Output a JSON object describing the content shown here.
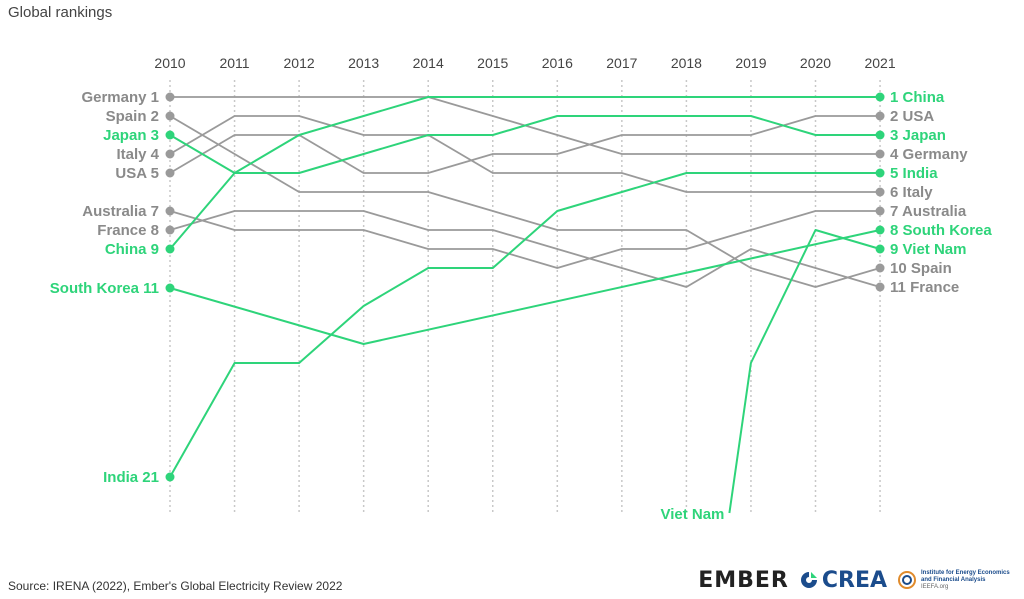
{
  "title": "Global rankings",
  "source": "Source: IRENA (2022), Ember's Global Electricity Review 2022",
  "logos": {
    "ember": "EMBER",
    "crea": "CREA",
    "ieefa_line1": "Institute for Energy Economics",
    "ieefa_line2": "and Financial Analysis",
    "ieefa_url": "IEEFA.org"
  },
  "colors": {
    "highlight": "#2ed47a",
    "muted": "#9a9a9a",
    "grid": "#c8c8c8",
    "label_muted": "#8a8a8a"
  },
  "chart_data": {
    "type": "line",
    "x": [
      2010,
      2011,
      2012,
      2013,
      2014,
      2015,
      2016,
      2017,
      2018,
      2019,
      2020,
      2021
    ],
    "ylim": [
      1,
      21
    ],
    "grid": true,
    "series": [
      {
        "name": "China",
        "highlight": true,
        "values": [
          9,
          5,
          3,
          2,
          1,
          1,
          1,
          1,
          1,
          1,
          1,
          1
        ],
        "start_label": "China 9",
        "end_label": "1 China"
      },
      {
        "name": "USA",
        "highlight": false,
        "values": [
          5,
          3,
          3,
          5,
          5,
          4,
          4,
          3,
          3,
          3,
          2,
          2
        ],
        "start_label": "USA 5",
        "end_label": "2 USA"
      },
      {
        "name": "Japan",
        "highlight": true,
        "values": [
          3,
          5,
          5,
          4,
          3,
          3,
          2,
          2,
          2,
          2,
          3,
          3
        ],
        "start_label": "Japan 3",
        "end_label": "3 Japan"
      },
      {
        "name": "Germany",
        "highlight": false,
        "values": [
          1,
          1,
          1,
          1,
          1,
          2,
          3,
          4,
          4,
          4,
          4,
          4
        ],
        "start_label": "Germany 1",
        "end_label": "4 Germany"
      },
      {
        "name": "India",
        "highlight": true,
        "values": [
          21,
          15,
          15,
          12,
          10,
          10,
          7,
          6,
          5,
          5,
          5,
          5
        ],
        "start_label": "India 21",
        "end_label": "5 India"
      },
      {
        "name": "Italy",
        "highlight": false,
        "values": [
          4,
          2,
          2,
          3,
          3,
          5,
          5,
          5,
          6,
          6,
          6,
          6
        ],
        "start_label": "Italy 4",
        "end_label": "6 Italy"
      },
      {
        "name": "Australia",
        "highlight": false,
        "values": [
          7,
          8,
          8,
          8,
          9,
          9,
          10,
          9,
          9,
          8,
          7,
          7
        ],
        "start_label": "Australia 7",
        "end_label": "7 Australia"
      },
      {
        "name": "South Korea",
        "highlight": true,
        "values": [
          11,
          null,
          null,
          14,
          null,
          null,
          null,
          null,
          null,
          null,
          null,
          8
        ],
        "start_label": "South Korea 11",
        "end_label": "8 South Korea"
      },
      {
        "name": "Viet Nam",
        "highlight": true,
        "values": [
          null,
          null,
          null,
          null,
          null,
          null,
          null,
          null,
          null,
          15,
          8,
          9
        ],
        "start_label": "Viet Nam",
        "end_label": "9 Viet Nam"
      },
      {
        "name": "Spain",
        "highlight": false,
        "values": [
          2,
          4,
          6,
          6,
          6,
          7,
          8,
          8,
          8,
          10,
          11,
          10
        ],
        "start_label": "Spain 2",
        "end_label": "10 Spain"
      },
      {
        "name": "France",
        "highlight": false,
        "values": [
          8,
          7,
          7,
          7,
          8,
          8,
          9,
          10,
          11,
          9,
          10,
          11
        ],
        "start_label": "France 8",
        "end_label": "11 France"
      }
    ]
  }
}
